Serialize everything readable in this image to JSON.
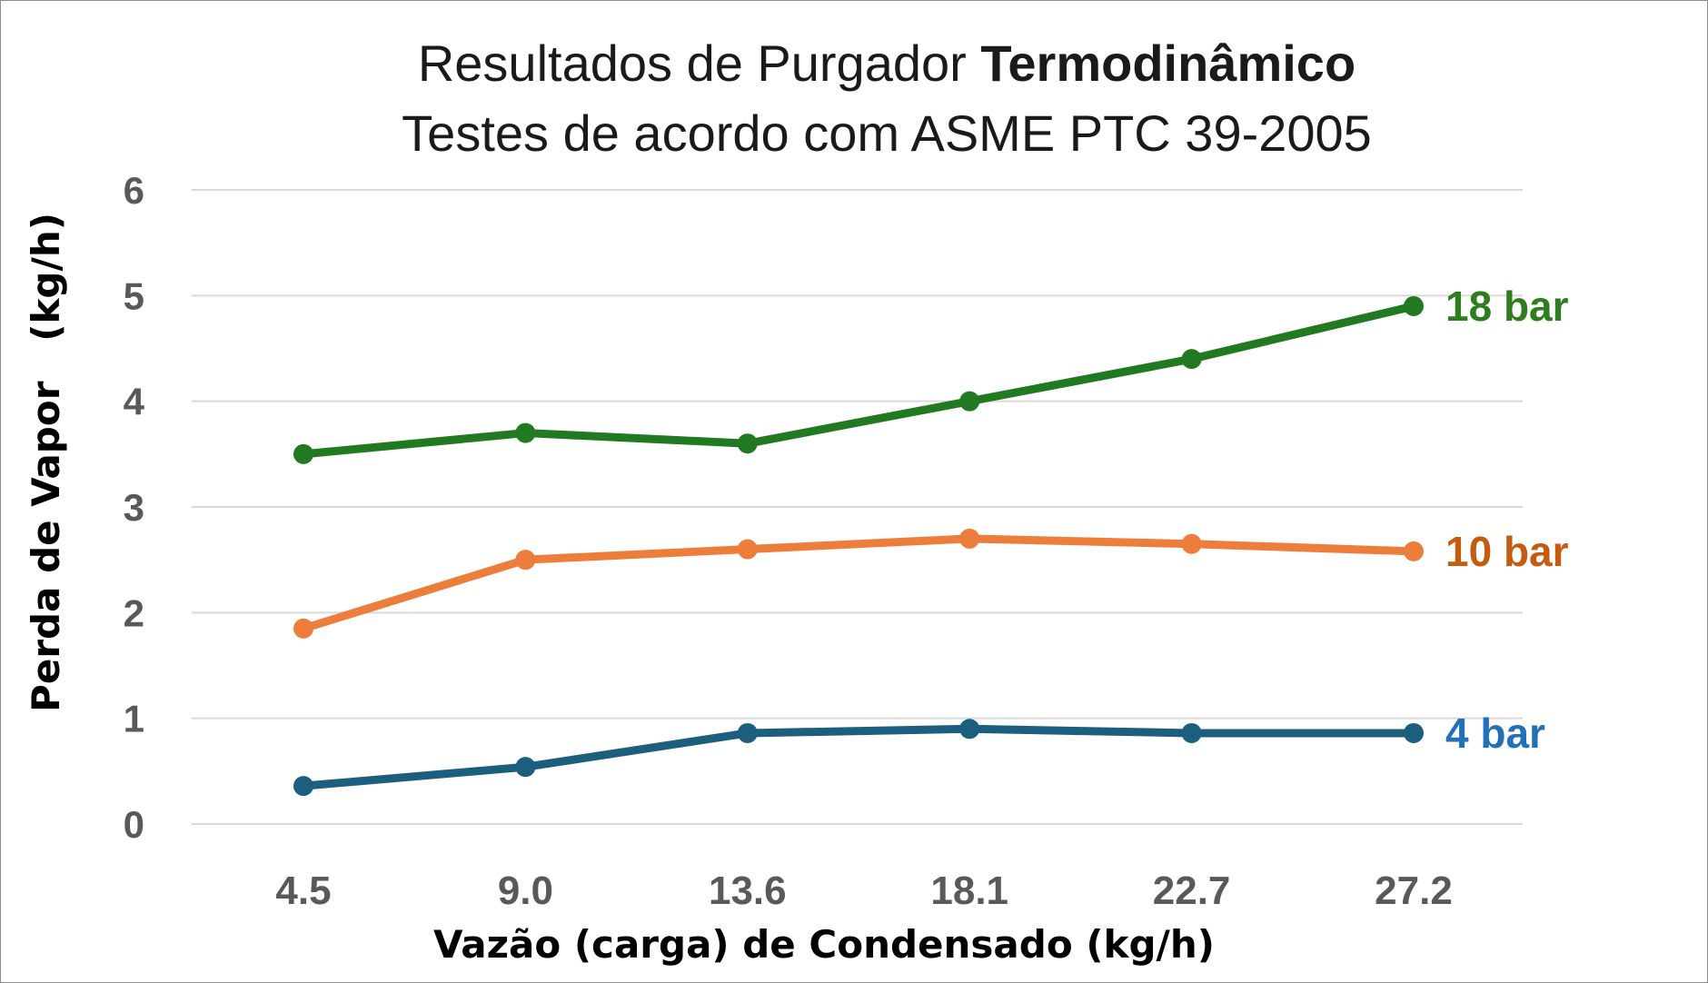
{
  "chart_data": {
    "type": "line",
    "title_line1_regular": "Resultados de Purgador ",
    "title_line1_bold": "Termodinâmico",
    "title_line2": "Testes de acordo com ASME PTC 39-2005",
    "xlabel": "Vazão (carga) de Condensado (kg/h)",
    "ylabel": "Perda de Vapor   (kg/h)",
    "categories": [
      "4.5",
      "9.0",
      "13.6",
      "18.1",
      "22.7",
      "27.2"
    ],
    "yticks": [
      "0",
      "1",
      "2",
      "3",
      "4",
      "5",
      "6"
    ],
    "ylim": [
      0,
      6
    ],
    "grid": true,
    "series": [
      {
        "name": "18 bar",
        "color": "#217a21",
        "label_color": "#2e7d1f",
        "values": [
          3.5,
          3.7,
          3.6,
          4.0,
          4.4,
          4.9
        ]
      },
      {
        "name": "10 bar",
        "color": "#ed7d3b",
        "label_color": "#c55a11",
        "values": [
          1.85,
          2.5,
          2.6,
          2.7,
          2.65,
          2.58
        ]
      },
      {
        "name": "4 bar",
        "color": "#1b5e7d",
        "label_color": "#2271b8",
        "values": [
          0.36,
          0.54,
          0.86,
          0.9,
          0.86,
          0.86
        ]
      }
    ]
  }
}
